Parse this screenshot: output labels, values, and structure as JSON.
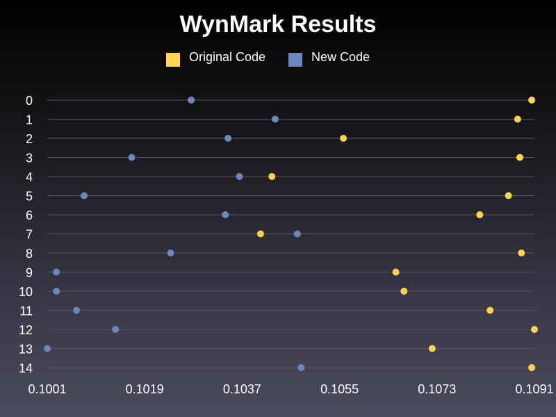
{
  "chart_data": {
    "type": "scatter",
    "title": "WynMark Results",
    "xlabel": "",
    "ylabel": "",
    "xlim": [
      0.1001,
      0.1091
    ],
    "x_ticks": [
      "0.1001",
      "0.1019",
      "0.1037",
      "0.1055",
      "0.1073",
      "0.1091"
    ],
    "categories": [
      "0",
      "1",
      "2",
      "3",
      "4",
      "5",
      "6",
      "7",
      "8",
      "9",
      "10",
      "11",
      "12",
      "13",
      "14"
    ],
    "grid": true,
    "legend_position": "top-center",
    "series": [
      {
        "name": "Original Code",
        "color": "#ffd54f",
        "values": [
          0.10905,
          0.10879,
          0.10557,
          0.10883,
          0.10425,
          0.10862,
          0.10809,
          0.10404,
          0.10886,
          0.10654,
          0.10669,
          0.10828,
          0.1091,
          0.10721,
          0.10905
        ]
      },
      {
        "name": "New Code",
        "color": "#6a88bd",
        "values": [
          0.10276,
          0.10431,
          0.10344,
          0.10166,
          0.10365,
          0.10078,
          0.10339,
          0.10472,
          0.10238,
          0.10027,
          0.10027,
          0.10064,
          0.10136,
          0.1001,
          0.10479
        ]
      }
    ]
  }
}
